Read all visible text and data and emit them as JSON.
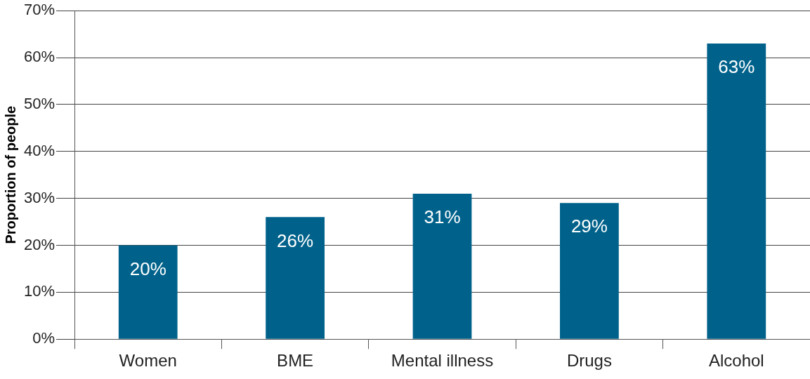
{
  "chart_data": {
    "type": "bar",
    "ylabel": "Proportion of people",
    "categories": [
      "Women",
      "BME",
      "Mental illness",
      "Drugs",
      "Alcohol"
    ],
    "values": [
      20,
      26,
      31,
      29,
      63
    ],
    "color": "#00628b",
    "value_labels": [
      "20%",
      "26%",
      "31%",
      "29%",
      "63%"
    ],
    "ylim": [
      0,
      70
    ],
    "yticks": [
      {
        "value": 0,
        "label": "0%"
      },
      {
        "value": 10,
        "label": "10%"
      },
      {
        "value": 20,
        "label": "20%"
      },
      {
        "value": 30,
        "label": "30%"
      },
      {
        "value": 40,
        "label": "40%"
      },
      {
        "value": 50,
        "label": "50%"
      },
      {
        "value": 60,
        "label": "60%"
      },
      {
        "value": 70,
        "label": "70%"
      }
    ],
    "grid": "y"
  }
}
